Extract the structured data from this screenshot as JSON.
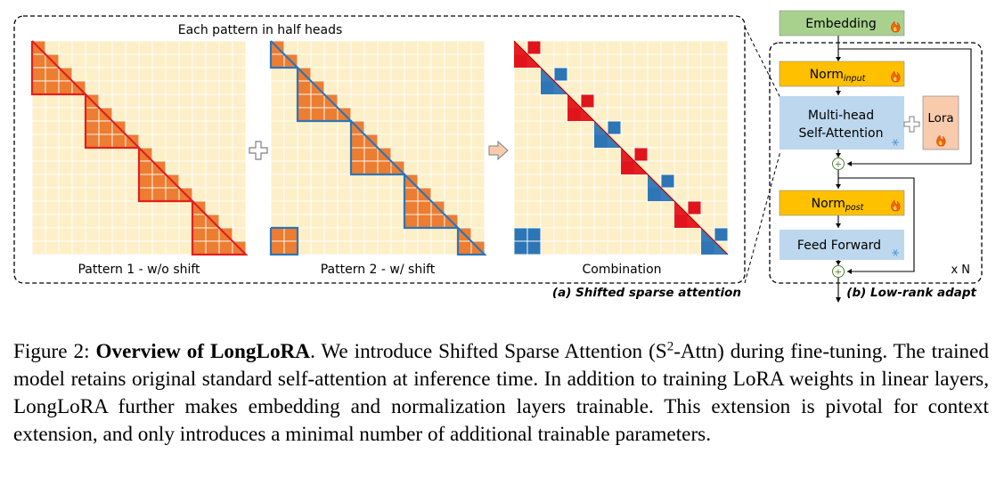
{
  "panel_a": {
    "top_label": "Each pattern in half heads",
    "pattern1_label": "Pattern 1 - w/o shift",
    "pattern2_label": "Pattern 2 - w/ shift",
    "combination_label": "Combination",
    "caption": "(a) Shifted sparse attention",
    "plus_symbol": "+",
    "arrow_symbol": "⇨",
    "colors": {
      "cell_bg": "#fdefc8",
      "cell_line": "#ffffff",
      "orange": "#ed7d31",
      "red": "#e0141b",
      "blue": "#2e75b6",
      "red_line": "#e02020",
      "blue_line": "#2e75b6"
    }
  },
  "panel_b": {
    "embedding": "Embedding",
    "norm_input": {
      "base": "Norm",
      "sub": "input"
    },
    "attention": {
      "line1": "Multi-head",
      "line2": "Self-Attention"
    },
    "lora": "Lora",
    "norm_post": {
      "base": "Norm",
      "sub": "post"
    },
    "feed_forward": "Feed Forward",
    "repeat": "x N",
    "caption": "(b) Low-rank adapt",
    "plus_symbol": "+",
    "fire_icon": "fire-icon",
    "snowflake_icon": "snowflake-icon",
    "colors": {
      "embedding": "#a9d18e",
      "norm": "#ffc000",
      "attention": "#bdd7ee",
      "lora": "#f8cbad"
    }
  },
  "caption": {
    "prefix": "Figure 2: ",
    "bold": "Overview of LongLoRA",
    "text1": ". We introduce Shifted Sparse Attention (S",
    "sup": "2",
    "text2": "-Attn) during fine-tuning. The trained model retains original standard self-attention at inference time. In addition to training LoRA weights in linear layers, LongLoRA further makes embedding and normalization layers trainable. This extension is pivotal for context extension, and only introduces a minimal number of additional trainable parameters."
  }
}
